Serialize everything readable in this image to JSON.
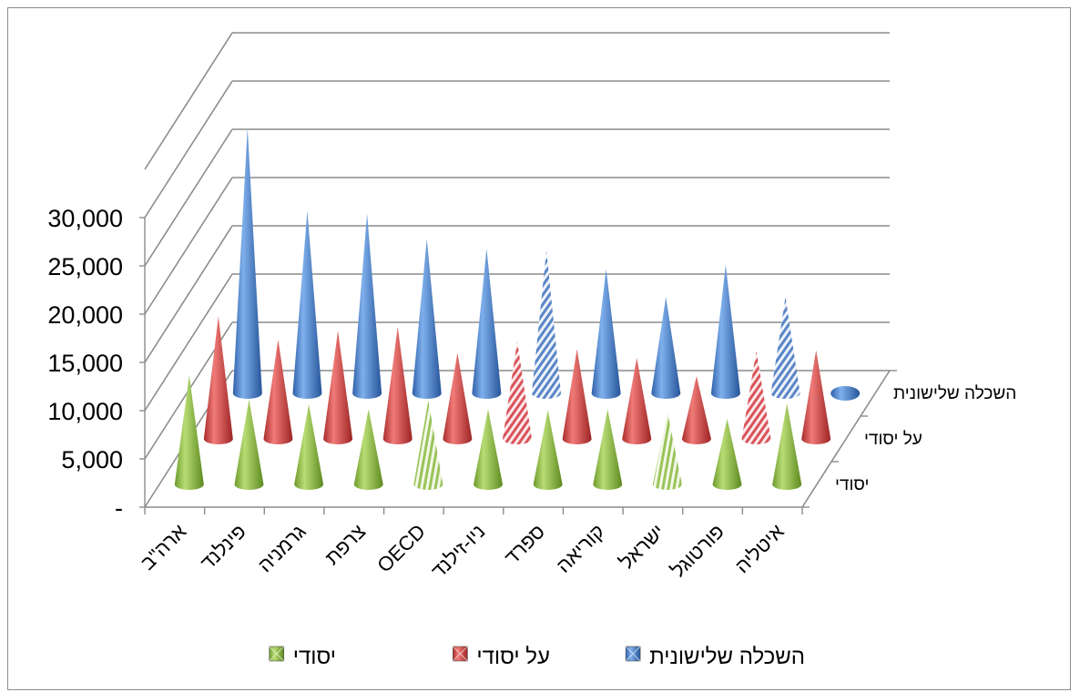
{
  "chart_data": {
    "type": "3d-cone",
    "title": "",
    "xlabel": "",
    "ylabel": "",
    "ylim": [
      0,
      30000
    ],
    "yticks": [
      "-",
      "5,000",
      "10,000",
      "15,000",
      "20,000",
      "25,000",
      "30,000"
    ],
    "grid": true,
    "legend_position": "bottom",
    "categories": [
      "ארה\"ב",
      "פינלנד",
      "גרמניה",
      "צרפת",
      "OECD",
      "ניו-זילנד",
      "ספרד",
      "קוריאה",
      "ישראל",
      "פורטוגל",
      "איטליה"
    ],
    "series": [
      {
        "name": "יסודי",
        "color": "#8cbf3f",
        "values": [
          11300,
          8800,
          8300,
          7800,
          8700,
          7800,
          7700,
          7800,
          7500,
          6800,
          8400
        ]
      },
      {
        "name": "על יסודי",
        "color": "#d9413f",
        "values": [
          12700,
          10300,
          11200,
          11600,
          8900,
          10100,
          9300,
          8400,
          6500,
          9100,
          9200
        ]
      },
      {
        "name": "השכלה שלישונית",
        "color": "#4a7fc8",
        "values": [
          27500,
          18900,
          18600,
          16000,
          15000,
          14800,
          12900,
          10000,
          13300,
          10000,
          0
        ]
      }
    ],
    "patterned": [
      {
        "series": 0,
        "category": 4
      },
      {
        "series": 0,
        "category": 8
      },
      {
        "series": 1,
        "category": 5
      },
      {
        "series": 1,
        "category": 9
      },
      {
        "series": 2,
        "category": 5
      },
      {
        "series": 2,
        "category": 9
      }
    ]
  }
}
